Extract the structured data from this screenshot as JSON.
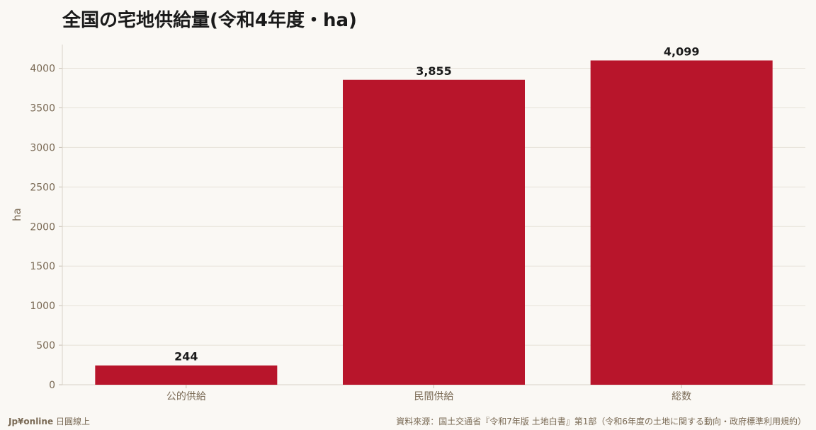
{
  "chart_data": {
    "type": "bar",
    "title": "全国の宅地供給量(令和4年度・ha)",
    "categories": [
      "公的供給",
      "民間供給",
      "総数"
    ],
    "values": [
      244,
      3855,
      4099
    ],
    "data_labels": [
      "244",
      "3,855",
      "4,099"
    ],
    "xlabel": "",
    "ylabel": "ha",
    "ylim": [
      0,
      4300
    ],
    "yticks": [
      0,
      500,
      1000,
      1500,
      2000,
      2500,
      3000,
      3500,
      4000
    ],
    "grid": true,
    "legend": "none",
    "bar_color": "#b8152b"
  },
  "footer": {
    "brand_name": "Jp¥online",
    "brand_sub": "日圓線上",
    "source": "資料來源：国土交通省『令和7年版 土地白書』第1部（令和6年度の土地に関する動向・政府標準利用規約）"
  },
  "colors": {
    "background": "#faf8f4",
    "bar": "#b8152b",
    "axis_text": "#7a6a55",
    "grid": "#e6e1d8"
  }
}
